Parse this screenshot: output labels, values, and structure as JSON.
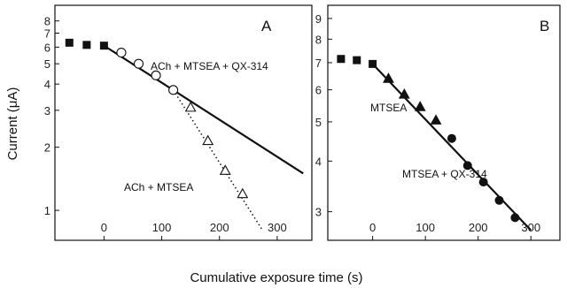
{
  "chart_data": [
    {
      "panel": "A",
      "type": "scatter",
      "xlabel": "Cumulative exposure time (s)",
      "ylabel": "Current (μA)",
      "yscale": "log",
      "xlim": [
        -85,
        360
      ],
      "ylim": [
        0.72,
        9.5
      ],
      "x_ticks": [
        0,
        100,
        200,
        300
      ],
      "y_ticks": [
        1,
        2,
        3,
        4,
        5,
        6,
        7,
        8
      ],
      "annotations": [
        "ACh + MTSEA + QX-314",
        "ACh + MTSEA"
      ],
      "series": [
        {
          "marker": "square-filled",
          "x": [
            -60,
            -30,
            0
          ],
          "y": [
            6.3,
            6.15,
            6.1
          ]
        },
        {
          "marker": "circle-open",
          "x": [
            30,
            60,
            90,
            120
          ],
          "y": [
            5.65,
            5.0,
            4.4,
            3.75
          ]
        },
        {
          "marker": "triangle-open",
          "x": [
            150,
            180,
            210,
            240
          ],
          "y": [
            3.1,
            2.15,
            1.55,
            1.2
          ]
        },
        {
          "style": "solid-line",
          "x": [
            0,
            345
          ],
          "y": [
            6.1,
            1.5
          ]
        },
        {
          "style": "dotted-line",
          "x": [
            120,
            275
          ],
          "y": [
            3.75,
            0.8
          ]
        }
      ]
    },
    {
      "panel": "B",
      "type": "scatter",
      "xlabel": "Cumulative exposure time (s)",
      "yscale": "log",
      "xlim": [
        -85,
        355
      ],
      "ylim": [
        2.55,
        9.7
      ],
      "x_ticks": [
        0,
        100,
        200,
        300
      ],
      "y_ticks": [
        3,
        4,
        5,
        6,
        7,
        8,
        9
      ],
      "annotations": [
        "MTSEA",
        "MTSEA + QX-314"
      ],
      "series": [
        {
          "marker": "square-filled",
          "x": [
            -60,
            -30,
            0
          ],
          "y": [
            7.15,
            7.1,
            6.95
          ]
        },
        {
          "marker": "triangle-filled",
          "x": [
            30,
            60,
            90,
            120
          ],
          "y": [
            6.4,
            5.85,
            5.45,
            5.05
          ]
        },
        {
          "marker": "circle-filled",
          "x": [
            150,
            180,
            210,
            240,
            270
          ],
          "y": [
            4.55,
            3.9,
            3.55,
            3.2,
            2.9
          ]
        },
        {
          "style": "solid-line",
          "x": [
            0,
            300
          ],
          "y": [
            6.95,
            2.7
          ]
        }
      ]
    }
  ],
  "panel_a": {
    "letter": "A",
    "label_upper": "ACh + MTSEA + QX-314",
    "label_lower": "ACh + MTSEA"
  },
  "panel_b": {
    "letter": "B",
    "label_upper": "MTSEA",
    "label_lower": "MTSEA + QX-314"
  },
  "axes": {
    "xlabel": "Cumulative exposure time (s)",
    "ylabel": "Current (μA)"
  }
}
